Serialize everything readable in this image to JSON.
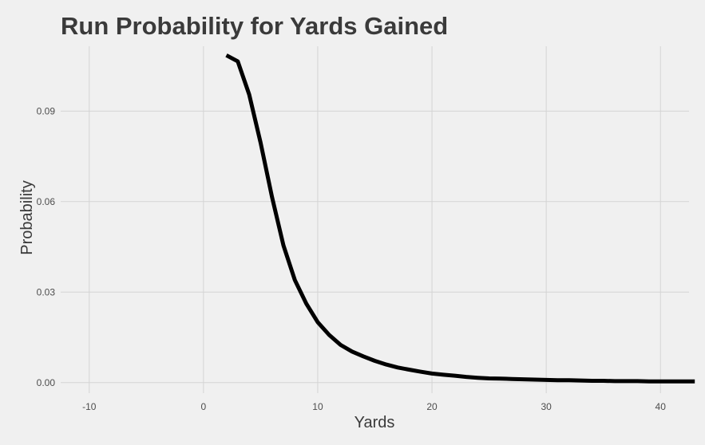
{
  "chart_data": {
    "type": "line",
    "title": "Run Probability for Yards Gained",
    "xlabel": "Yards",
    "ylabel": "Probability",
    "xlim": [
      -12.5,
      42.5
    ],
    "ylim": [
      -0.0035,
      0.1115
    ],
    "x_ticks": [
      {
        "value": -10,
        "label": "-10"
      },
      {
        "value": 0,
        "label": "0"
      },
      {
        "value": 10,
        "label": "10"
      },
      {
        "value": 20,
        "label": "20"
      },
      {
        "value": 30,
        "label": "30"
      },
      {
        "value": 40,
        "label": "40"
      }
    ],
    "y_ticks": [
      {
        "value": 0.0,
        "label": "0.00"
      },
      {
        "value": 0.03,
        "label": "0.03"
      },
      {
        "value": 0.06,
        "label": "0.06"
      },
      {
        "value": 0.09,
        "label": "0.09"
      }
    ],
    "grid": true,
    "legend": "none",
    "series": [
      {
        "color": "#000000",
        "x": [
          2,
          3,
          4,
          5,
          6,
          7,
          8,
          9,
          10,
          11,
          12,
          13,
          14,
          15,
          16,
          17,
          18,
          19,
          20,
          21,
          22,
          23,
          24,
          25,
          26,
          27,
          28,
          29,
          30,
          31,
          32,
          33,
          34,
          35,
          36,
          37,
          38,
          39,
          40,
          41,
          42,
          43
        ],
        "y": [
          0.1085,
          0.1065,
          0.0955,
          0.0795,
          0.0615,
          0.0455,
          0.034,
          0.0262,
          0.02,
          0.0158,
          0.0125,
          0.0103,
          0.0087,
          0.0072,
          0.006,
          0.005,
          0.0043,
          0.0036,
          0.003,
          0.0026,
          0.0023,
          0.0019,
          0.0016,
          0.0014,
          0.0013,
          0.0012,
          0.0011,
          0.001,
          0.0009,
          0.0008,
          0.0008,
          0.0007,
          0.0006,
          0.0006,
          0.0005,
          0.0005,
          0.0005,
          0.0004,
          0.0004,
          0.0004,
          0.0004,
          0.0004
        ]
      }
    ]
  }
}
